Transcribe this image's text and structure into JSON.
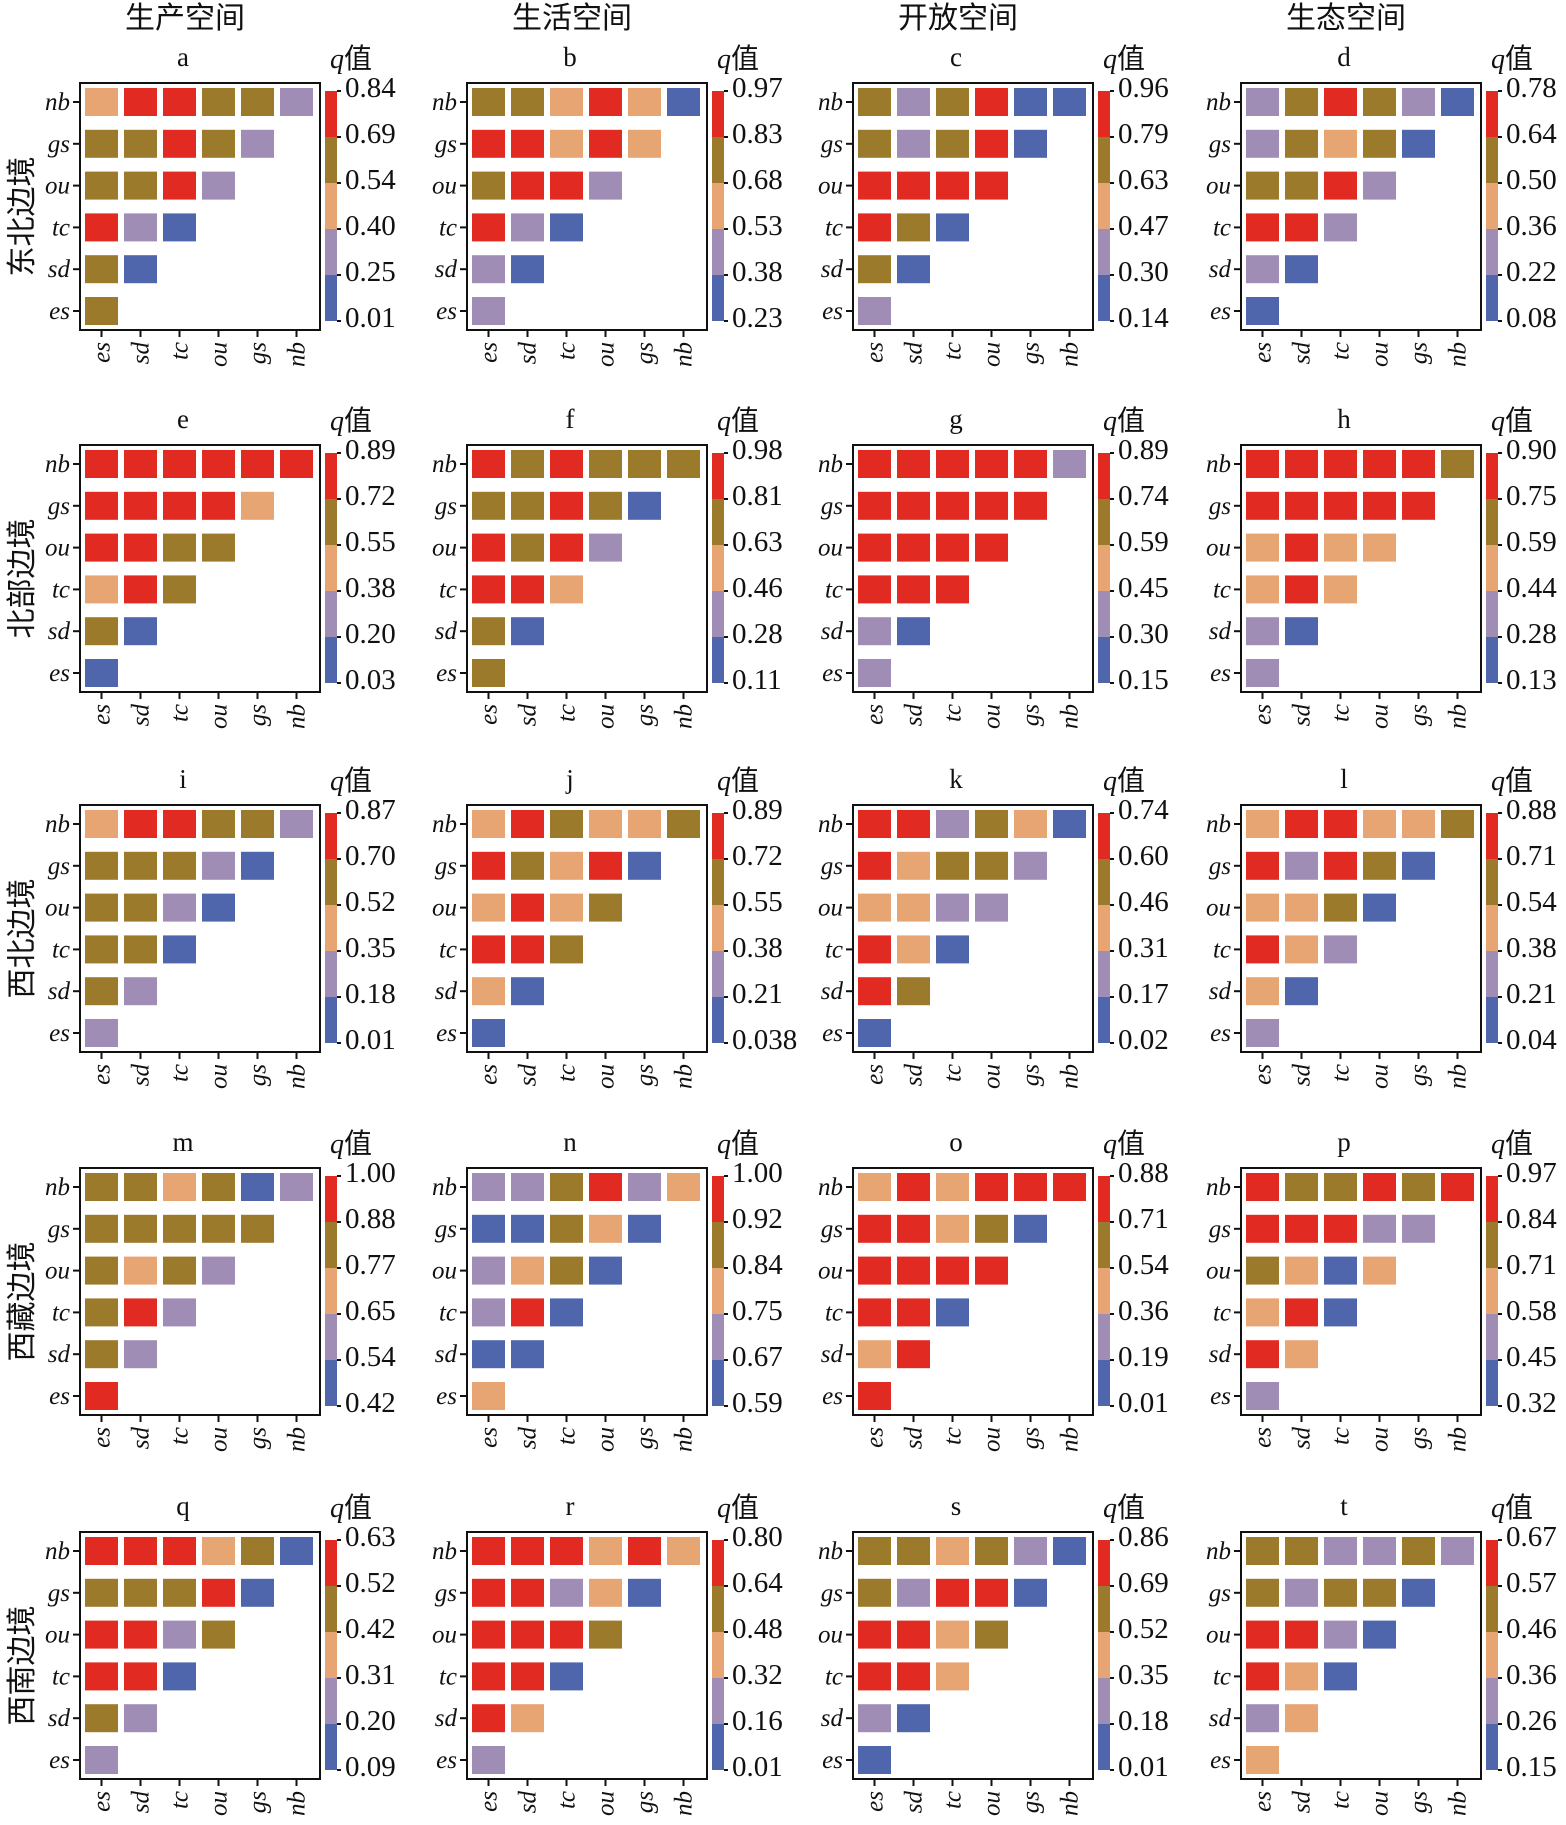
{
  "colors": {
    "blue": "#4f66ad",
    "lavender": "#a08db5",
    "peach": "#e8a574",
    "olive": "#9c7a2b",
    "red": "#e02a22"
  },
  "col_titles": [
    "生产空间",
    "生活空间",
    "开放空间",
    "生态空间"
  ],
  "row_titles": [
    "东北边境",
    "北部边境",
    "西北边境",
    "西藏边境",
    "西南边境"
  ],
  "factors": [
    "es",
    "sd",
    "tc",
    "ou",
    "gs",
    "nb"
  ],
  "legend_title_q": "q",
  "legend_title_suffix": "值",
  "chart_data": [
    {
      "type": "heatmap",
      "panel": "a",
      "ticks": [
        "0.84",
        "0.69",
        "0.54",
        "0.40",
        "0.25",
        "0.01"
      ],
      "cells": [
        [
          3
        ],
        [
          3,
          0
        ],
        [
          4,
          1,
          0
        ],
        [
          3,
          3,
          4,
          1
        ],
        [
          3,
          3,
          4,
          3,
          1
        ],
        [
          2,
          4,
          4,
          3,
          3,
          1
        ]
      ]
    },
    {
      "type": "heatmap",
      "panel": "b",
      "ticks": [
        "0.97",
        "0.83",
        "0.68",
        "0.53",
        "0.38",
        "0.23"
      ],
      "cells": [
        [
          1
        ],
        [
          1,
          0
        ],
        [
          4,
          1,
          0
        ],
        [
          3,
          4,
          4,
          1
        ],
        [
          4,
          4,
          2,
          4,
          2
        ],
        [
          3,
          3,
          2,
          4,
          2,
          0
        ]
      ]
    },
    {
      "type": "heatmap",
      "panel": "c",
      "ticks": [
        "0.96",
        "0.79",
        "0.63",
        "0.47",
        "0.30",
        "0.14"
      ],
      "cells": [
        [
          1
        ],
        [
          3,
          0
        ],
        [
          4,
          3,
          0
        ],
        [
          4,
          4,
          4,
          4
        ],
        [
          3,
          1,
          3,
          4,
          0
        ],
        [
          3,
          1,
          3,
          4,
          0,
          0
        ]
      ]
    },
    {
      "type": "heatmap",
      "panel": "d",
      "ticks": [
        "0.78",
        "0.64",
        "0.50",
        "0.36",
        "0.22",
        "0.08"
      ],
      "cells": [
        [
          0
        ],
        [
          1,
          0
        ],
        [
          4,
          4,
          1
        ],
        [
          3,
          3,
          4,
          1
        ],
        [
          1,
          3,
          2,
          3,
          0
        ],
        [
          1,
          3,
          4,
          3,
          1,
          0
        ]
      ]
    },
    {
      "type": "heatmap",
      "panel": "e",
      "ticks": [
        "0.89",
        "0.72",
        "0.55",
        "0.38",
        "0.20",
        "0.03"
      ],
      "cells": [
        [
          0
        ],
        [
          3,
          0
        ],
        [
          2,
          4,
          3
        ],
        [
          4,
          4,
          3,
          3
        ],
        [
          4,
          4,
          4,
          4,
          2
        ],
        [
          4,
          4,
          4,
          4,
          4,
          4
        ]
      ]
    },
    {
      "type": "heatmap",
      "panel": "f",
      "ticks": [
        "0.98",
        "0.81",
        "0.63",
        "0.46",
        "0.28",
        "0.11"
      ],
      "cells": [
        [
          3
        ],
        [
          3,
          0
        ],
        [
          4,
          4,
          2
        ],
        [
          4,
          3,
          4,
          1
        ],
        [
          3,
          3,
          4,
          3,
          0
        ],
        [
          4,
          3,
          4,
          3,
          3,
          3
        ]
      ]
    },
    {
      "type": "heatmap",
      "panel": "g",
      "ticks": [
        "0.89",
        "0.74",
        "0.59",
        "0.45",
        "0.30",
        "0.15"
      ],
      "cells": [
        [
          1
        ],
        [
          1,
          0
        ],
        [
          4,
          4,
          4
        ],
        [
          4,
          4,
          4,
          4
        ],
        [
          4,
          4,
          4,
          4,
          4
        ],
        [
          4,
          4,
          4,
          4,
          4,
          1
        ]
      ]
    },
    {
      "type": "heatmap",
      "panel": "h",
      "ticks": [
        "0.90",
        "0.75",
        "0.59",
        "0.44",
        "0.28",
        "0.13"
      ],
      "cells": [
        [
          1
        ],
        [
          1,
          0
        ],
        [
          2,
          4,
          2
        ],
        [
          2,
          4,
          2,
          2
        ],
        [
          4,
          4,
          4,
          4,
          4
        ],
        [
          4,
          4,
          4,
          4,
          4,
          3
        ]
      ]
    },
    {
      "type": "heatmap",
      "panel": "i",
      "ticks": [
        "0.87",
        "0.70",
        "0.52",
        "0.35",
        "0.18",
        "0.01"
      ],
      "cells": [
        [
          1
        ],
        [
          3,
          1
        ],
        [
          3,
          3,
          0
        ],
        [
          3,
          3,
          1,
          0
        ],
        [
          3,
          3,
          3,
          1,
          0
        ],
        [
          2,
          4,
          4,
          3,
          3,
          1
        ]
      ]
    },
    {
      "type": "heatmap",
      "panel": "j",
      "ticks": [
        "0.89",
        "0.72",
        "0.55",
        "0.38",
        "0.21",
        "0.038"
      ],
      "cells": [
        [
          0
        ],
        [
          2,
          0
        ],
        [
          4,
          4,
          3
        ],
        [
          2,
          4,
          2,
          3
        ],
        [
          4,
          3,
          2,
          4,
          0
        ],
        [
          2,
          4,
          3,
          2,
          2,
          3
        ]
      ]
    },
    {
      "type": "heatmap",
      "panel": "k",
      "ticks": [
        "0.74",
        "0.60",
        "0.46",
        "0.31",
        "0.17",
        "0.02"
      ],
      "cells": [
        [
          0
        ],
        [
          4,
          3
        ],
        [
          4,
          2,
          0
        ],
        [
          2,
          2,
          1,
          1
        ],
        [
          4,
          2,
          3,
          3,
          1
        ],
        [
          4,
          4,
          1,
          3,
          2,
          0
        ]
      ]
    },
    {
      "type": "heatmap",
      "panel": "l",
      "ticks": [
        "0.88",
        "0.71",
        "0.54",
        "0.38",
        "0.21",
        "0.04"
      ],
      "cells": [
        [
          1
        ],
        [
          2,
          0
        ],
        [
          4,
          2,
          1
        ],
        [
          2,
          2,
          3,
          0
        ],
        [
          4,
          1,
          4,
          3,
          0
        ],
        [
          2,
          4,
          4,
          2,
          2,
          3
        ]
      ]
    },
    {
      "type": "heatmap",
      "panel": "m",
      "ticks": [
        "1.00",
        "0.88",
        "0.77",
        "0.65",
        "0.54",
        "0.42"
      ],
      "cells": [
        [
          4
        ],
        [
          3,
          1
        ],
        [
          3,
          4,
          1
        ],
        [
          3,
          2,
          3,
          1
        ],
        [
          3,
          3,
          3,
          3,
          3
        ],
        [
          3,
          3,
          2,
          3,
          0,
          1
        ]
      ]
    },
    {
      "type": "heatmap",
      "panel": "n",
      "ticks": [
        "1.00",
        "0.92",
        "0.84",
        "0.75",
        "0.67",
        "0.59"
      ],
      "cells": [
        [
          2
        ],
        [
          0,
          0
        ],
        [
          1,
          4,
          0
        ],
        [
          1,
          2,
          3,
          0
        ],
        [
          0,
          0,
          3,
          2,
          0
        ],
        [
          1,
          1,
          3,
          4,
          1,
          2
        ]
      ]
    },
    {
      "type": "heatmap",
      "panel": "o",
      "ticks": [
        "0.88",
        "0.71",
        "0.54",
        "0.36",
        "0.19",
        "0.01"
      ],
      "cells": [
        [
          4
        ],
        [
          2,
          4
        ],
        [
          4,
          4,
          0
        ],
        [
          4,
          4,
          4,
          4
        ],
        [
          4,
          4,
          2,
          3,
          0
        ],
        [
          2,
          4,
          2,
          4,
          4,
          4
        ]
      ]
    },
    {
      "type": "heatmap",
      "panel": "p",
      "ticks": [
        "0.97",
        "0.84",
        "0.71",
        "0.58",
        "0.45",
        "0.32"
      ],
      "cells": [
        [
          1
        ],
        [
          4,
          2
        ],
        [
          2,
          4,
          0
        ],
        [
          3,
          2,
          0,
          2
        ],
        [
          4,
          4,
          4,
          1,
          1
        ],
        [
          4,
          3,
          3,
          4,
          3,
          4
        ]
      ]
    },
    {
      "type": "heatmap",
      "panel": "q",
      "ticks": [
        "0.63",
        "0.52",
        "0.42",
        "0.31",
        "0.20",
        "0.09"
      ],
      "cells": [
        [
          1
        ],
        [
          3,
          1
        ],
        [
          4,
          4,
          0
        ],
        [
          4,
          4,
          1,
          3
        ],
        [
          3,
          3,
          3,
          4,
          0
        ],
        [
          4,
          4,
          4,
          2,
          3,
          0
        ]
      ]
    },
    {
      "type": "heatmap",
      "panel": "r",
      "ticks": [
        "0.80",
        "0.64",
        "0.48",
        "0.32",
        "0.16",
        "0.01"
      ],
      "cells": [
        [
          1
        ],
        [
          4,
          2
        ],
        [
          4,
          4,
          0
        ],
        [
          4,
          4,
          4,
          3
        ],
        [
          4,
          4,
          1,
          2,
          0
        ],
        [
          4,
          4,
          4,
          2,
          4,
          2
        ]
      ]
    },
    {
      "type": "heatmap",
      "panel": "s",
      "ticks": [
        "0.86",
        "0.69",
        "0.52",
        "0.35",
        "0.18",
        "0.01"
      ],
      "cells": [
        [
          0
        ],
        [
          1,
          0
        ],
        [
          4,
          4,
          2
        ],
        [
          4,
          4,
          2,
          3
        ],
        [
          3,
          1,
          4,
          4,
          0
        ],
        [
          3,
          3,
          2,
          3,
          1,
          0
        ]
      ]
    },
    {
      "type": "heatmap",
      "panel": "t",
      "ticks": [
        "0.67",
        "0.57",
        "0.46",
        "0.36",
        "0.26",
        "0.15"
      ],
      "cells": [
        [
          2
        ],
        [
          1,
          2
        ],
        [
          4,
          2,
          0
        ],
        [
          4,
          4,
          1,
          0
        ],
        [
          3,
          1,
          3,
          3,
          0
        ],
        [
          3,
          3,
          1,
          1,
          3,
          1
        ]
      ]
    }
  ]
}
